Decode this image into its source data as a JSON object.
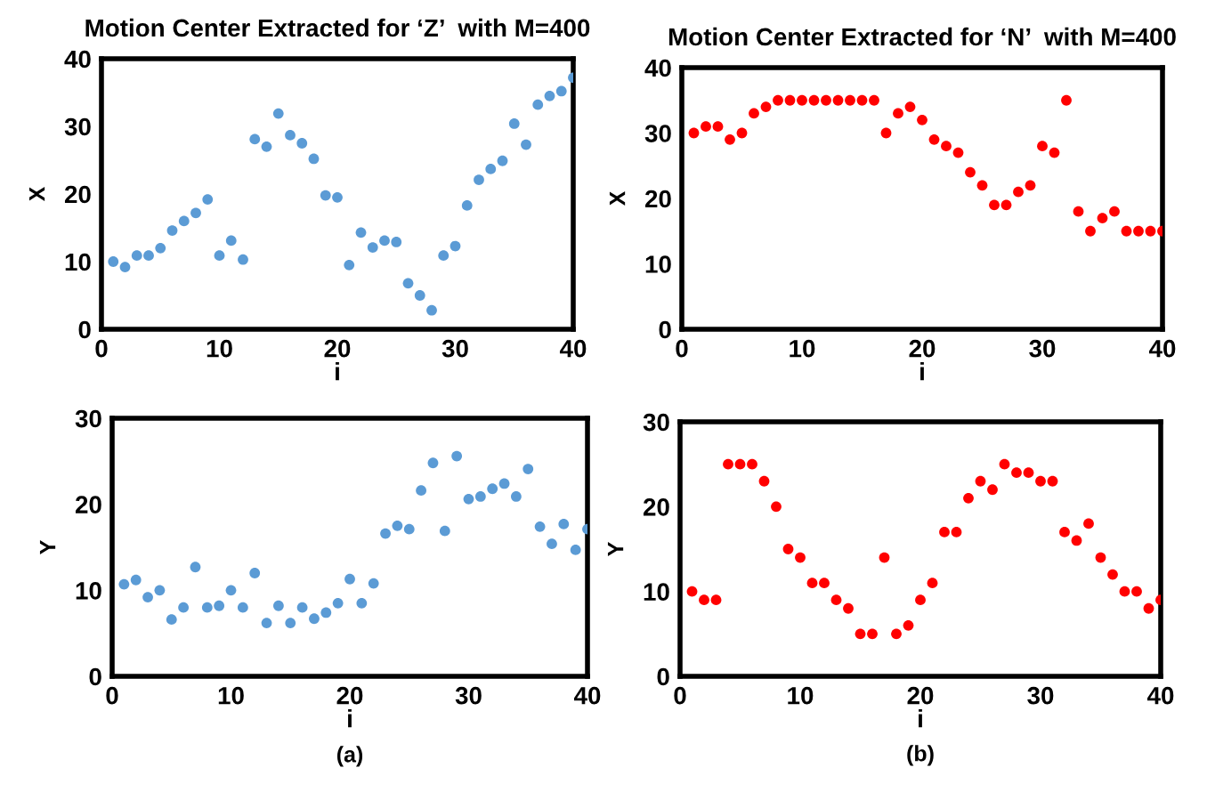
{
  "chart_data": [
    {
      "type": "scatter",
      "title": "Motion Center Extracted for ‘Z’  with M=400",
      "xlabel": "i",
      "ylabel": "X",
      "marker": "circle",
      "grid": false,
      "legend": false,
      "x": [
        1,
        2,
        3,
        4,
        5,
        6,
        7,
        8,
        9,
        10,
        11,
        12,
        13,
        14,
        15,
        16,
        17,
        18,
        19,
        20,
        21,
        22,
        23,
        24,
        25,
        26,
        27,
        28,
        29,
        30,
        31,
        32,
        33,
        34,
        35,
        36,
        37,
        38,
        39,
        40
      ],
      "series": [
        {
          "color": "#5b9bd5",
          "values": [
            10,
            9.2,
            10.9,
            10.9,
            12,
            14.6,
            16,
            17.2,
            19.2,
            10.9,
            13.1,
            10.3,
            28.1,
            27,
            31.9,
            28.7,
            27.5,
            25.2,
            19.8,
            19.5,
            9.5,
            14.3,
            12.1,
            13.1,
            12.9,
            6.8,
            5,
            2.8,
            10.9,
            12.3,
            18.3,
            22.1,
            23.7,
            24.9,
            30.4,
            27.3,
            33.2,
            34.5,
            35.2,
            37.2
          ]
        }
      ],
      "xlim": [
        0,
        40
      ],
      "xticks": [
        0,
        10,
        20,
        30,
        40
      ],
      "ylim": [
        0,
        40
      ],
      "yticks": [
        0,
        10,
        20,
        30,
        40
      ]
    },
    {
      "type": "scatter",
      "title": "Motion Center Extracted for ‘N’  with M=400",
      "xlabel": "i",
      "ylabel": "X",
      "marker": "circle",
      "grid": false,
      "legend": false,
      "x": [
        1,
        2,
        3,
        4,
        5,
        6,
        7,
        8,
        9,
        10,
        11,
        12,
        13,
        14,
        15,
        16,
        17,
        18,
        19,
        20,
        21,
        22,
        23,
        24,
        25,
        26,
        27,
        28,
        29,
        30,
        31,
        32,
        33,
        34,
        35,
        36,
        37,
        38,
        39,
        40
      ],
      "series": [
        {
          "color": "#ff0000",
          "values": [
            30,
            31,
            31,
            29,
            30,
            33,
            34,
            35,
            35,
            35,
            35,
            35,
            35,
            35,
            35,
            35,
            30,
            33,
            34,
            32,
            29,
            28,
            27,
            24,
            22,
            19,
            19,
            21,
            22,
            28,
            27,
            35,
            18,
            15,
            17,
            18,
            15,
            15,
            15,
            15
          ]
        }
      ],
      "xlim": [
        0,
        40
      ],
      "xticks": [
        0,
        10,
        20,
        30,
        40
      ],
      "ylim": [
        0,
        40
      ],
      "yticks": [
        0,
        10,
        20,
        30,
        40
      ]
    },
    {
      "type": "scatter",
      "xlabel": "i",
      "ylabel": "Y",
      "marker": "circle",
      "grid": false,
      "legend": false,
      "annotations": [
        "(a)"
      ],
      "x": [
        1,
        2,
        3,
        4,
        5,
        6,
        7,
        8,
        9,
        10,
        11,
        12,
        13,
        14,
        15,
        16,
        17,
        18,
        19,
        20,
        21,
        22,
        23,
        24,
        25,
        26,
        27,
        28,
        29,
        30,
        31,
        32,
        33,
        34,
        35,
        36,
        37,
        38,
        39,
        40
      ],
      "series": [
        {
          "color": "#5b9bd5",
          "values": [
            10.7,
            11.2,
            9.2,
            10,
            6.6,
            8,
            12.7,
            8,
            8.2,
            10,
            8,
            12,
            6.2,
            8.2,
            6.2,
            8,
            6.7,
            7.4,
            8.5,
            11.3,
            8.5,
            10.8,
            16.6,
            17.5,
            17.1,
            21.6,
            24.8,
            16.9,
            25.6,
            20.6,
            20.9,
            21.8,
            22.4,
            20.9,
            24.1,
            17.4,
            15.4,
            17.7,
            14.7,
            17.1
          ]
        }
      ],
      "xlim": [
        0,
        40
      ],
      "xticks": [
        0,
        10,
        20,
        30,
        40
      ],
      "ylim": [
        0,
        30
      ],
      "yticks": [
        0,
        10,
        20,
        30
      ]
    },
    {
      "type": "scatter",
      "xlabel": "i",
      "ylabel": "Y",
      "marker": "circle",
      "grid": false,
      "legend": false,
      "annotations": [
        "(b)"
      ],
      "x": [
        1,
        2,
        3,
        4,
        5,
        6,
        7,
        8,
        9,
        10,
        11,
        12,
        13,
        14,
        15,
        16,
        17,
        18,
        19,
        20,
        21,
        22,
        23,
        24,
        25,
        26,
        27,
        28,
        29,
        30,
        31,
        32,
        33,
        34,
        35,
        36,
        37,
        38,
        39,
        40
      ],
      "series": [
        {
          "color": "#ff0000",
          "values": [
            10,
            9,
            9,
            25,
            25,
            25,
            23,
            20,
            15,
            14,
            11,
            11,
            9,
            8,
            5,
            5,
            14,
            5,
            6,
            9,
            11,
            17,
            17,
            21,
            23,
            22,
            25,
            24,
            24,
            23,
            23,
            17,
            16,
            18,
            14,
            12,
            10,
            10,
            8,
            9
          ]
        }
      ],
      "xlim": [
        0,
        40
      ],
      "xticks": [
        0,
        10,
        20,
        30,
        40
      ],
      "ylim": [
        0,
        30
      ],
      "yticks": [
        0,
        10,
        20,
        30
      ]
    }
  ]
}
